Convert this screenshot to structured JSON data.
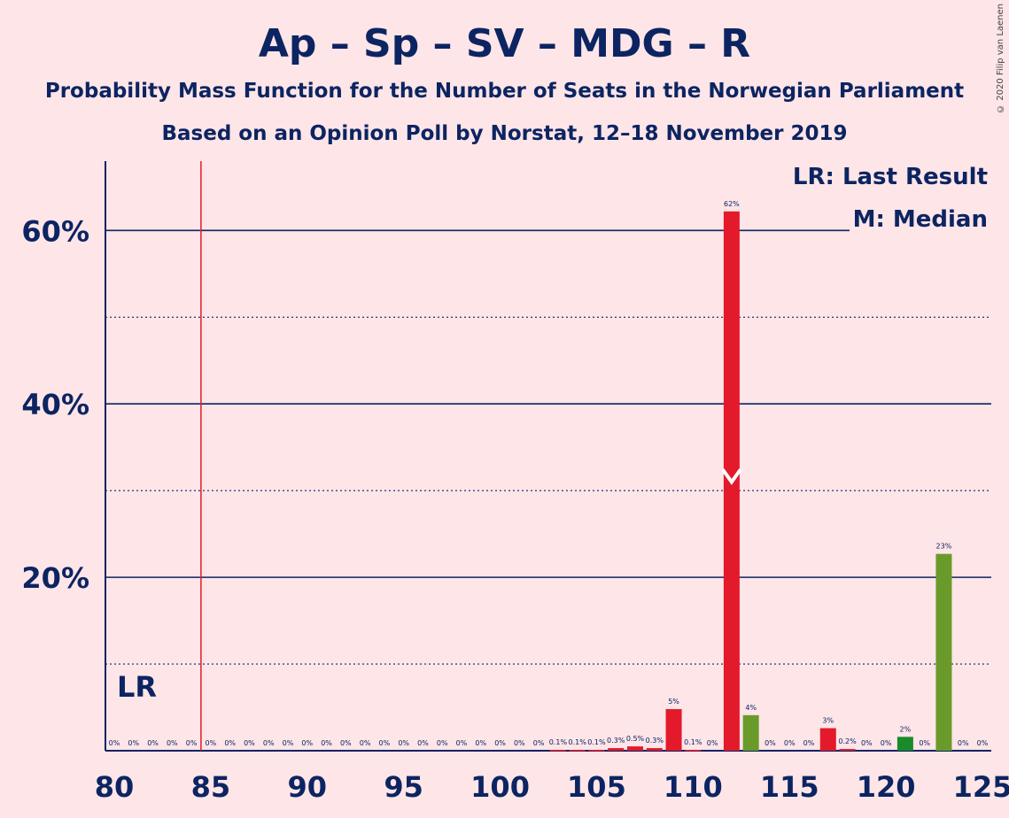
{
  "title": "Ap – Sp – SV – MDG – R",
  "subtitle": "Probability Mass Function for the Number of Seats in the Norwegian Parliament",
  "subtitle2": "Based on an Opinion Poll by Norstat, 12–18 November 2019",
  "copyright": "© 2020 Filip van Laenen",
  "legend": {
    "lr": "LR: Last Result",
    "m": "M: Median"
  },
  "chart_data": {
    "type": "bar",
    "x": [
      80,
      81,
      82,
      83,
      84,
      85,
      86,
      87,
      88,
      89,
      90,
      91,
      92,
      93,
      94,
      95,
      96,
      97,
      98,
      99,
      100,
      101,
      102,
      103,
      104,
      105,
      106,
      107,
      108,
      109,
      110,
      111,
      112,
      113,
      114,
      115,
      116,
      117,
      118,
      119,
      120,
      121,
      122,
      123,
      124,
      125
    ],
    "values": [
      0,
      0,
      0,
      0,
      0,
      0,
      0,
      0,
      0,
      0,
      0,
      0,
      0,
      0,
      0,
      0,
      0,
      0,
      0,
      0,
      0,
      0,
      0,
      0.1,
      0.1,
      0.1,
      0.3,
      0.5,
      0.3,
      4.8,
      0.1,
      0,
      62.2,
      4.1,
      0,
      0,
      0,
      2.6,
      0.2,
      0,
      0,
      1.6,
      0,
      22.7,
      0,
      0
    ],
    "labels": [
      "0%",
      "0%",
      "0%",
      "0%",
      "0%",
      "0%",
      "0%",
      "0%",
      "0%",
      "0%",
      "0%",
      "0%",
      "0%",
      "0%",
      "0%",
      "0%",
      "0%",
      "0%",
      "0%",
      "0%",
      "0%",
      "0%",
      "0%",
      "0.1%",
      "0.1%",
      "0.1%",
      "0.3%",
      "0.5%",
      "0.3%",
      "5%",
      "0.1%",
      "0%",
      "62%",
      "4%",
      "0%",
      "0%",
      "0%",
      "3%",
      "0.2%",
      "0%",
      "0%",
      "2%",
      "0%",
      "23%",
      "0%",
      "0%"
    ],
    "bar_colors": {
      "red": "#e31a2b",
      "green": "#6a9a2a",
      "darkgreen": "#1a8a2a"
    },
    "color_groups": {
      "112": "red",
      "113": "green",
      "117": "red",
      "121": "darkgreen",
      "123": "green",
      "109": "red",
      "107": "red"
    },
    "xticks": [
      "80",
      "85",
      "90",
      "95",
      "100",
      "105",
      "110",
      "115",
      "120",
      "125"
    ],
    "yticks": [
      "20%",
      "40%",
      "60%"
    ],
    "ylim": [
      0,
      68
    ],
    "last_result": 85,
    "last_result_label": "LR",
    "median": 112
  }
}
